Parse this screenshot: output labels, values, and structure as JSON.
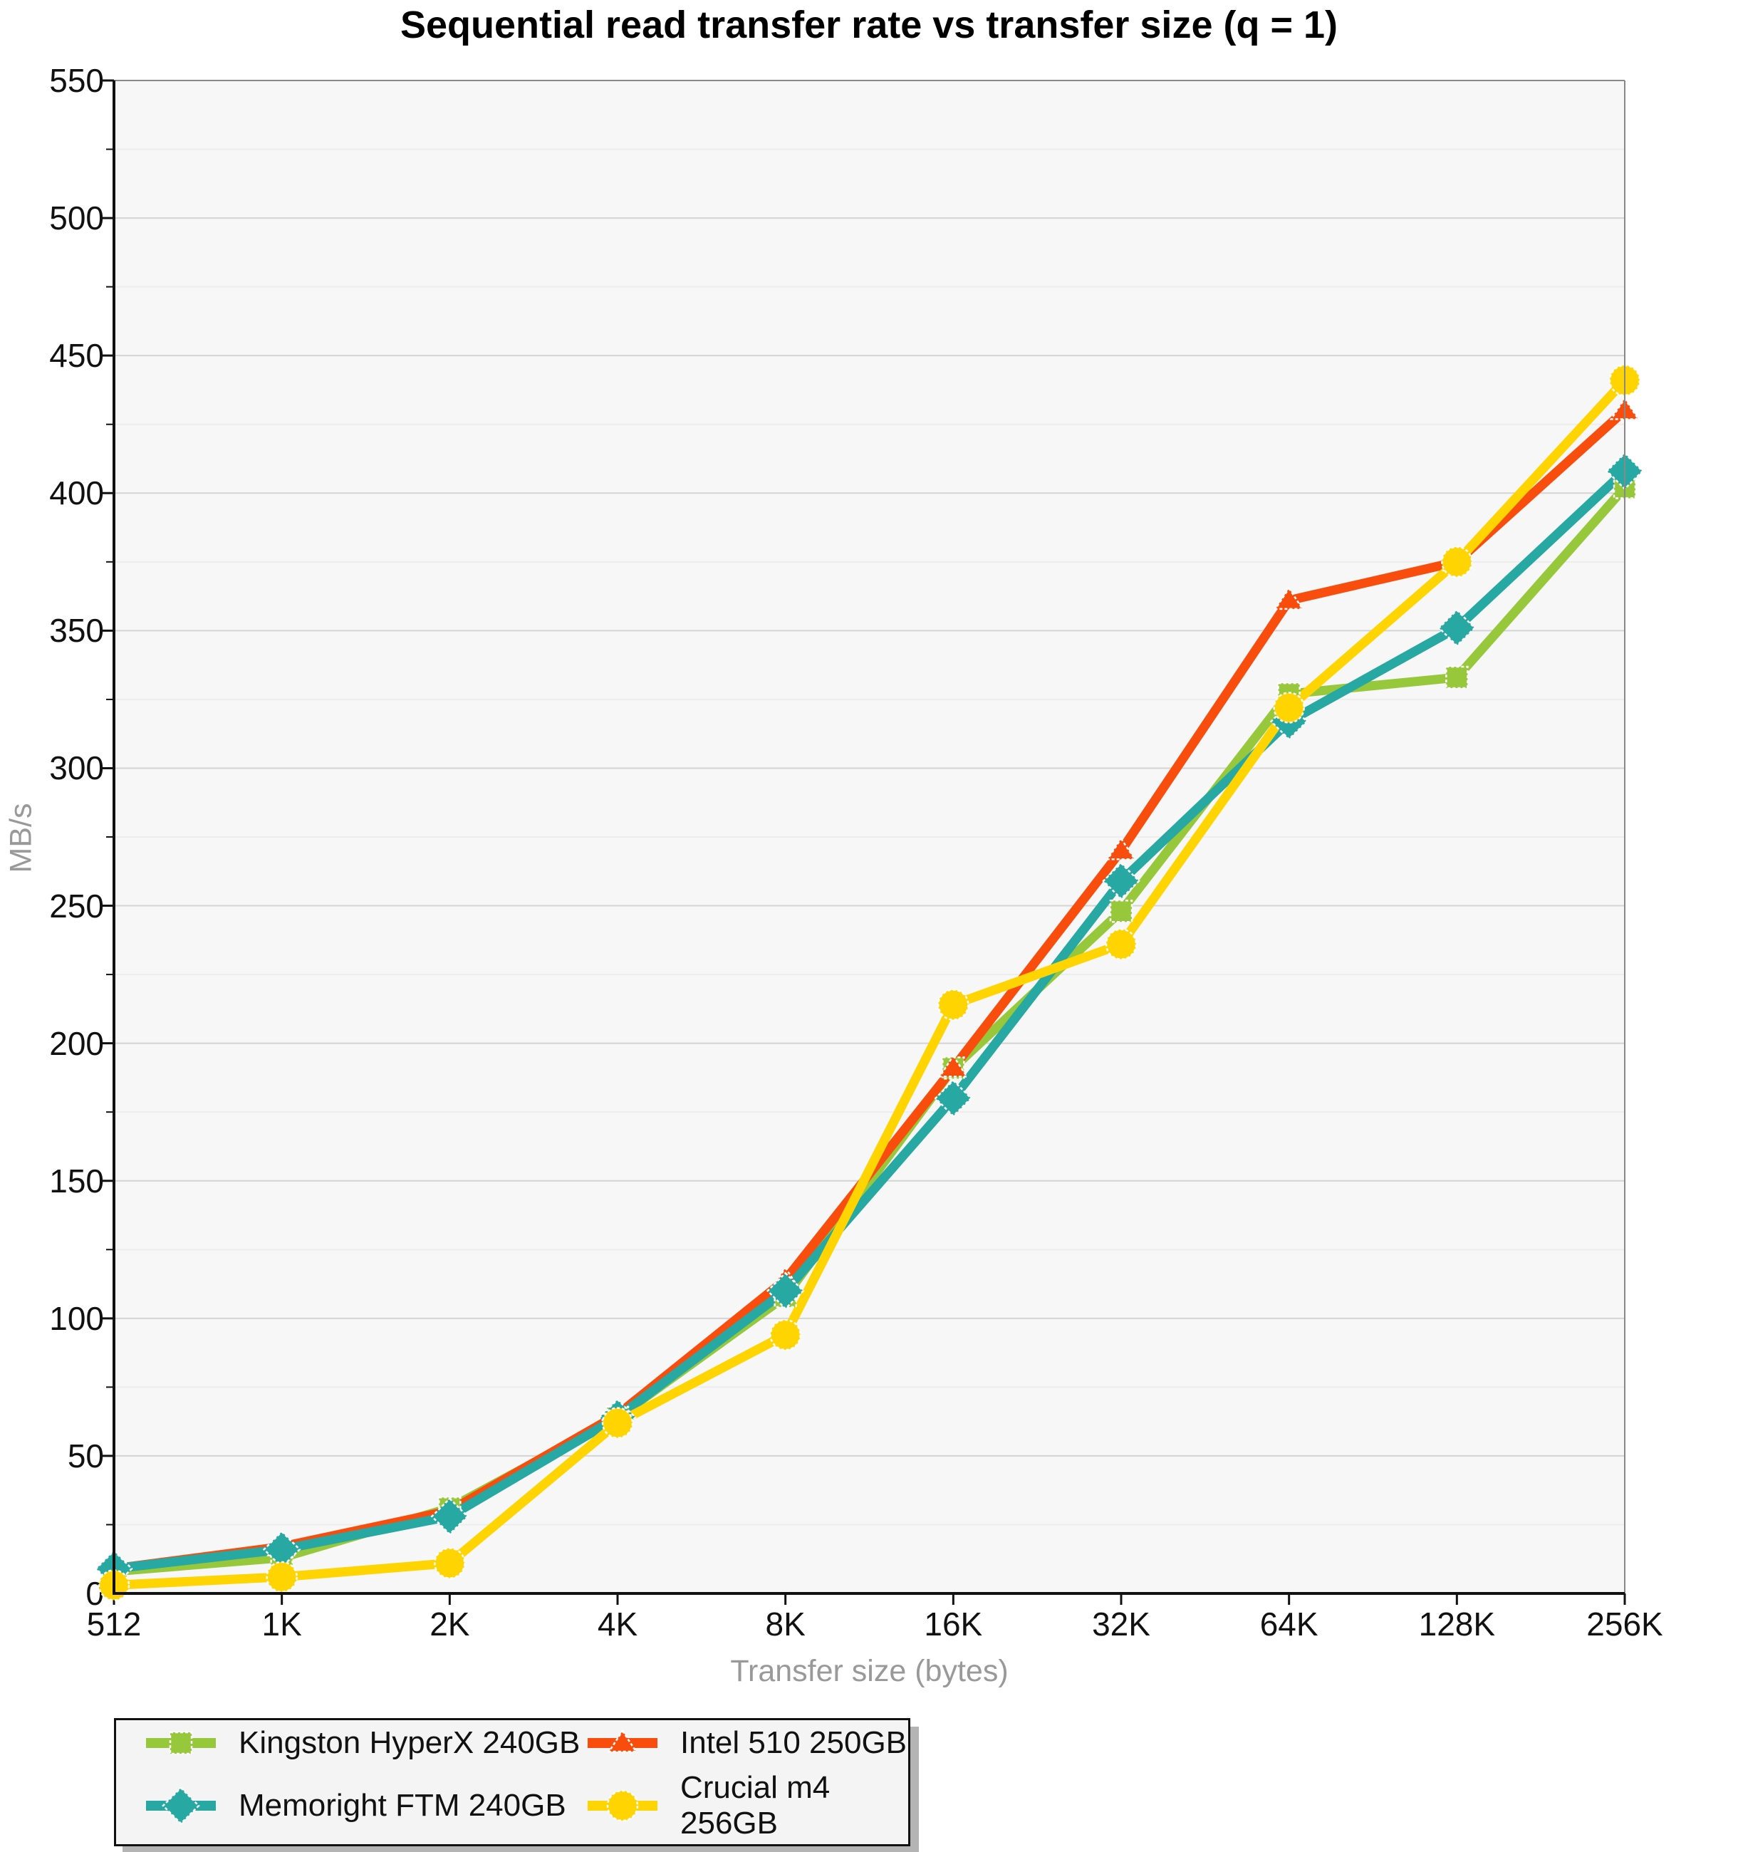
{
  "chart_data": {
    "type": "line",
    "title": "Sequential read transfer rate vs transfer size (q = 1)",
    "xlabel": "Transfer size (bytes)",
    "ylabel": "MB/s",
    "ylim": [
      0,
      550
    ],
    "y_tick_step": 50,
    "y_minor_step": 25,
    "grid": true,
    "legend_position": "bottom-left",
    "categories": [
      "512",
      "1K",
      "2K",
      "4K",
      "8K",
      "16K",
      "32K",
      "64K",
      "128K",
      "256K"
    ],
    "series": [
      {
        "name": "Kingston HyperX 240GB",
        "marker": "square",
        "color": "#97C83C",
        "values": [
          8,
          13,
          31,
          64,
          108,
          191,
          248,
          327,
          333,
          402
        ]
      },
      {
        "name": "Intel 510 250GB",
        "marker": "triangle",
        "color": "#F94D0D",
        "values": [
          9,
          17,
          30,
          65,
          114,
          191,
          270,
          361,
          375,
          430
        ]
      },
      {
        "name": "Memoright FTM 240GB",
        "marker": "diamond",
        "color": "#27A8A2",
        "values": [
          9,
          16,
          28,
          64,
          110,
          180,
          259,
          317,
          351,
          408
        ]
      },
      {
        "name": "Crucial m4 256GB",
        "marker": "circle",
        "color": "#FFD400",
        "values": [
          3,
          6,
          11,
          62,
          94,
          214,
          236,
          322,
          375,
          441
        ]
      }
    ],
    "colors": {
      "plot_background": "#f7f7f7",
      "major_grid": "#d4d4d4",
      "minor_grid": "#ededed",
      "axis": "#111111",
      "frame": "#888888",
      "axis_text": "#111111",
      "muted_text": "#999999",
      "legend_shadow": "#b4b4b4"
    }
  }
}
